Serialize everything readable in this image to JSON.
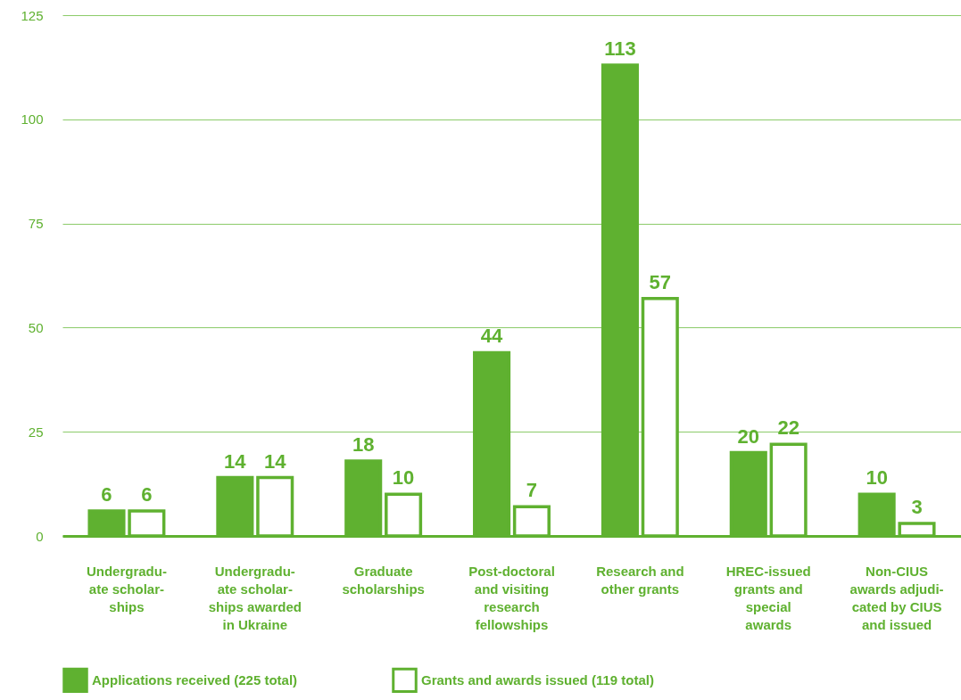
{
  "chart_data": {
    "type": "bar",
    "categories": [
      "Undergradu-\nate scholar-\nships",
      "Undergradu-\nate scholar-\nships awarded\nin Ukraine",
      "Graduate\nscholarships",
      "Post-doctoral\nand visiting\nresearch\nfellowships",
      "Research and\nother grants",
      "HREC-issued\ngrants and\nspecial\nawards",
      "Non-CIUS\nawards adjudi-\ncated by CIUS\nand issued"
    ],
    "series": [
      {
        "name": "Applications received (225 total)",
        "color": "#5fb130",
        "values": [
          6,
          14,
          18,
          44,
          113,
          20,
          10
        ]
      },
      {
        "name": "Grants and awards issued (119 total)",
        "color": "#5fb130",
        "values": [
          6,
          14,
          10,
          7,
          57,
          22,
          3
        ]
      }
    ],
    "ylim": [
      0,
      125
    ],
    "yticks": [
      0,
      25,
      50,
      75,
      100,
      125
    ],
    "grid": "y",
    "legend": "bottom",
    "data_labels": true
  }
}
